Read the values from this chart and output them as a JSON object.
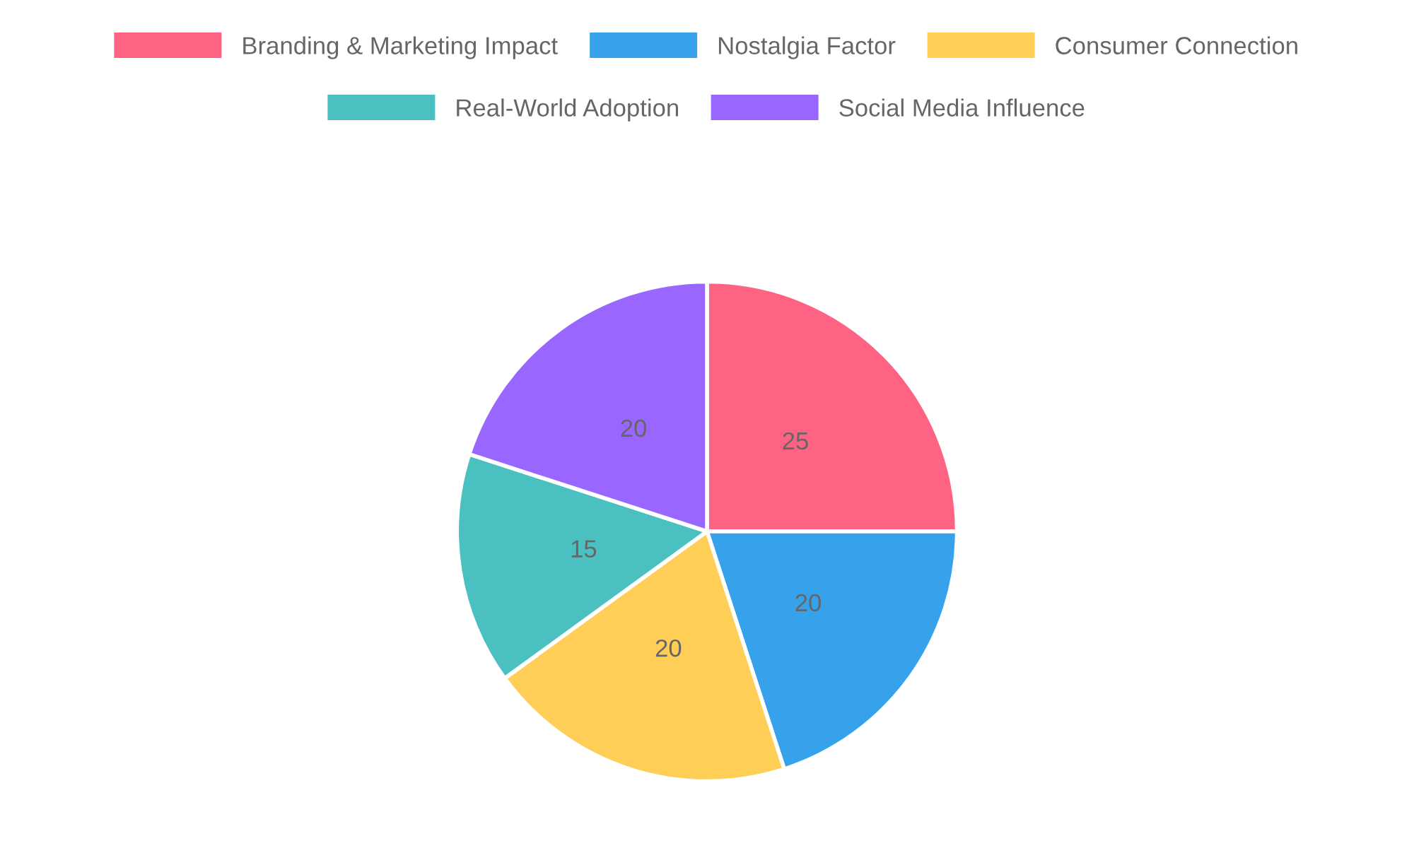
{
  "chart_data": {
    "type": "pie",
    "categories": [
      "Branding & Marketing Impact",
      "Nostalgia Factor",
      "Consumer Connection",
      "Real-World Adoption",
      "Social Media Influence"
    ],
    "values": [
      25,
      20,
      20,
      15,
      20
    ],
    "colors": [
      "#ff6384",
      "#36a2eb",
      "#ffce56",
      "#4bc0c0",
      "#9966ff"
    ],
    "legend": "top",
    "data_labels": true
  }
}
